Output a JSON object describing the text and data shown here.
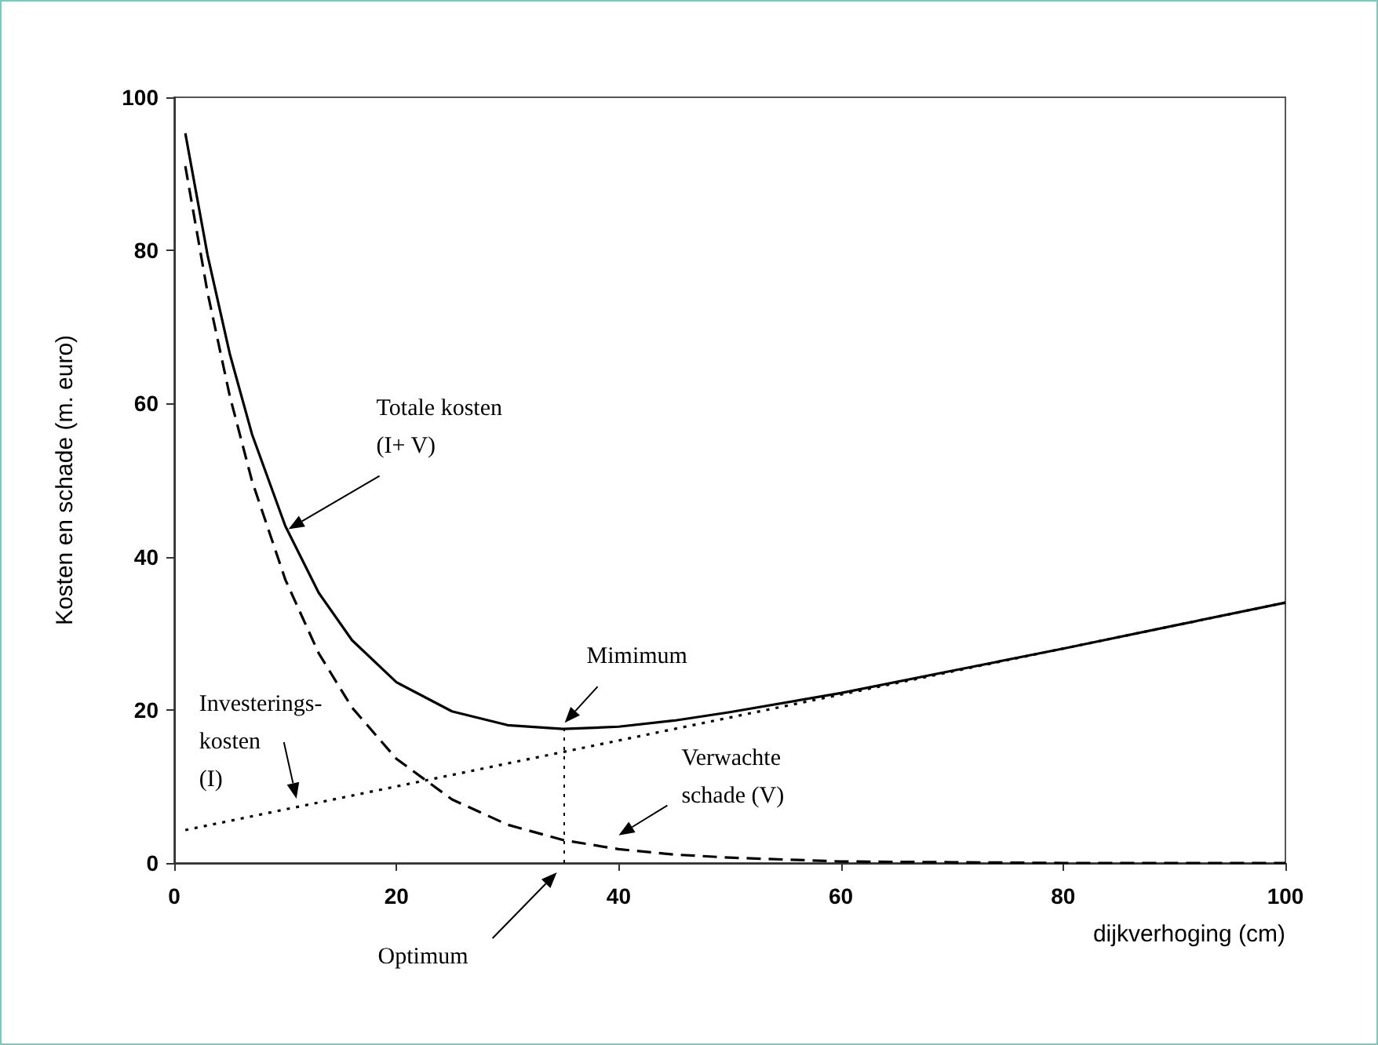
{
  "chart_data": {
    "type": "line",
    "xlabel": "dijkverhoging (cm)",
    "ylabel": "Kosten en schade (m. euro)",
    "x": [
      1,
      3,
      5,
      7,
      10,
      13,
      16,
      20,
      25,
      30,
      35,
      40,
      45,
      50,
      60,
      70,
      80,
      90,
      100
    ],
    "series": [
      {
        "color": "#000000",
        "line_style": "solid",
        "values": [
          95.3,
          79.4,
          66.5,
          56,
          44,
          35.3,
          29.1,
          23.6,
          19.8,
          18,
          17.5,
          17.8,
          18.6,
          19.7,
          22.2,
          25.1,
          28,
          31,
          34
        ]
      },
      {
        "color": "#000000",
        "line_style": "dashed",
        "values": [
          91,
          74.5,
          61,
          49.9,
          37,
          27.4,
          20.3,
          13.6,
          8.3,
          5,
          3,
          1.8,
          1.1,
          0.7,
          0.2,
          0.1,
          0,
          0,
          0
        ]
      },
      {
        "color": "#000000",
        "line_style": "dotted",
        "values": [
          4.3,
          4.9,
          5.5,
          6.1,
          7,
          7.9,
          8.8,
          10,
          11.5,
          13,
          14.5,
          16,
          17.5,
          19,
          22,
          25,
          28,
          31,
          34
        ]
      }
    ],
    "xlim": [
      0,
      100
    ],
    "xticks": [
      0,
      20,
      40,
      60,
      80,
      100
    ],
    "ylim": [
      0,
      100
    ],
    "yticks": [
      0,
      20,
      40,
      60,
      80,
      100
    ],
    "marker": "none",
    "grid": false,
    "ref_lines": [
      {
        "axis": "x",
        "value": 35,
        "color": "#000000",
        "line_style": "dotted"
      }
    ],
    "annotations": [
      "Totale kosten\n(I+ V)",
      {
        "text": "Mimimum",
        "x": 35,
        "y": 17.5
      },
      {
        "text": "Investerings-\nkosten\n(I)",
        "x": 11,
        "y": 8
      },
      {
        "text": "Verwachte\nschade (V)",
        "x": 40,
        "y": 3
      },
      "Optimum"
    ]
  }
}
